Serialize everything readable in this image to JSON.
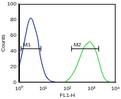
{
  "chart_data": {
    "type": "line",
    "x_label": "FL1-H",
    "y_label": "Counts",
    "log": "x",
    "grid": false,
    "xlim": [
      1,
      10000
    ],
    "xticks": [
      {
        "value": 1,
        "label": "10⁰"
      },
      {
        "value": 10,
        "label": "10¹"
      },
      {
        "value": 100,
        "label": "10²"
      },
      {
        "value": 1000,
        "label": "10³"
      },
      {
        "value": 10000,
        "label": "10⁴"
      }
    ],
    "ylim": [
      0,
      100
    ],
    "yticks": [
      0,
      20,
      40,
      60,
      80,
      100
    ],
    "series": [
      {
        "color": "#1f2a9e",
        "x": [
          1,
          1.5,
          2,
          2.5,
          3,
          3.5,
          4,
          5,
          6,
          7,
          8,
          10,
          13,
          18,
          25,
          40
        ],
        "values": [
          20,
          45,
          65,
          78,
          82,
          80,
          75,
          65,
          55,
          40,
          30,
          18,
          8,
          3,
          1,
          0
        ]
      },
      {
        "color": "#2fcf3a",
        "x": [
          80,
          120,
          200,
          300,
          400,
          500,
          600,
          700,
          800,
          1000,
          1300,
          1600,
          2000,
          2600,
          3500,
          5000,
          7000
        ],
        "values": [
          0,
          5,
          15,
          28,
          38,
          45,
          48,
          50,
          52,
          50,
          45,
          38,
          28,
          15,
          5,
          1,
          0
        ]
      }
    ],
    "markers": [
      {
        "label": "M1",
        "x": [
          1.2,
          8
        ],
        "y": 43
      },
      {
        "label": "M2",
        "x": [
          150,
          2000
        ],
        "y": 43
      }
    ]
  }
}
